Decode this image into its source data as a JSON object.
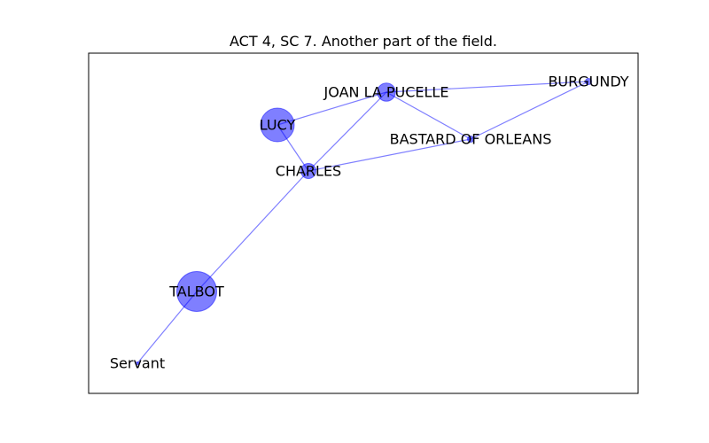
{
  "title": "ACT 4, SC 7. Another part of the field.",
  "colors": {
    "node": "#0000ff",
    "edge": "#0000ff",
    "frame": "#000000"
  },
  "nodes": [
    {
      "id": "joan",
      "label": "JOAN LA PUCELLE",
      "weight": 3
    },
    {
      "id": "burgundy",
      "label": "BURGUNDY",
      "weight": 1
    },
    {
      "id": "lucy",
      "label": "LUCY",
      "weight": 8
    },
    {
      "id": "bastard",
      "label": "BASTARD OF ORLEANS",
      "weight": 1
    },
    {
      "id": "charles",
      "label": "CHARLES",
      "weight": 2
    },
    {
      "id": "talbot",
      "label": "TALBOT",
      "weight": 10
    },
    {
      "id": "servant",
      "label": "Servant",
      "weight": 0
    }
  ],
  "edges": [
    [
      "joan",
      "burgundy"
    ],
    [
      "joan",
      "lucy"
    ],
    [
      "joan",
      "bastard"
    ],
    [
      "joan",
      "charles"
    ],
    [
      "burgundy",
      "bastard"
    ],
    [
      "lucy",
      "charles"
    ],
    [
      "bastard",
      "charles"
    ],
    [
      "charles",
      "talbot"
    ],
    [
      "talbot",
      "servant"
    ]
  ]
}
